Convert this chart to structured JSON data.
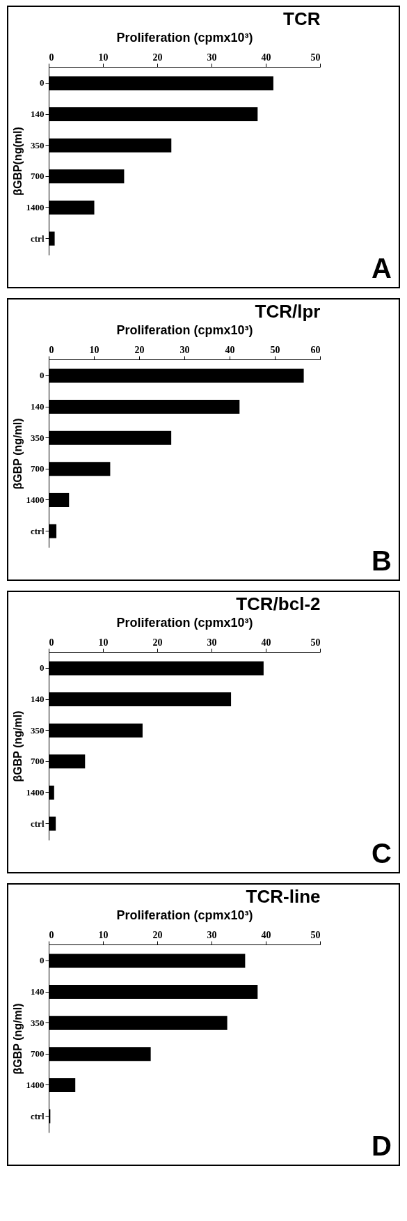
{
  "chart_data": [
    {
      "type": "bar",
      "orientation": "horizontal",
      "title": "TCR",
      "xlabel": "Proliferation (cpmx10³)",
      "ylabel": "βGBP(ng(ml)",
      "categories": [
        "0",
        "140",
        "350",
        "700",
        "1400",
        "ctrl"
      ],
      "values": [
        41.4,
        38.5,
        22.6,
        13.9,
        8.4,
        1.1
      ],
      "color": "#000000",
      "xlim": [
        0,
        50
      ],
      "xticks": [
        0,
        10,
        20,
        30,
        40,
        50
      ],
      "annotations": [
        "A"
      ]
    },
    {
      "type": "bar",
      "orientation": "horizontal",
      "title": "TCR/lpr",
      "xlabel": "Proliferation (cpmx10³)",
      "ylabel": "βGBP (ng/ml)",
      "categories": [
        "0",
        "140",
        "350",
        "700",
        "1400",
        "ctrl"
      ],
      "values": [
        56.4,
        42.2,
        27.1,
        13.6,
        4.5,
        1.7
      ],
      "color": "#000000",
      "xlim": [
        0,
        60
      ],
      "xticks": [
        0,
        10,
        20,
        30,
        40,
        50,
        60
      ],
      "annotations": [
        "B"
      ]
    },
    {
      "type": "bar",
      "orientation": "horizontal",
      "title": "TCR/bcl-2",
      "xlabel": "Proliferation (cpmx10³)",
      "ylabel": "βGBP (ng/ml)",
      "categories": [
        "0",
        "140",
        "350",
        "700",
        "1400",
        "ctrl"
      ],
      "values": [
        39.6,
        33.6,
        17.3,
        6.7,
        1.0,
        1.3
      ],
      "color": "#000000",
      "xlim": [
        0,
        50
      ],
      "xticks": [
        0,
        10,
        20,
        30,
        40,
        50
      ],
      "annotations": [
        "C"
      ]
    },
    {
      "type": "bar",
      "orientation": "horizontal",
      "title": "TCR-line",
      "xlabel": "Proliferation (cpmx10³)",
      "ylabel": "βGBP (ng/ml)",
      "categories": [
        "0",
        "140",
        "350",
        "700",
        "1400",
        "ctrl"
      ],
      "values": [
        36.2,
        38.5,
        32.9,
        18.8,
        4.9,
        0.3
      ],
      "color": "#000000",
      "xlim": [
        0,
        50
      ],
      "xticks": [
        0,
        10,
        20,
        30,
        40,
        50
      ],
      "annotations": [
        "D"
      ]
    }
  ]
}
